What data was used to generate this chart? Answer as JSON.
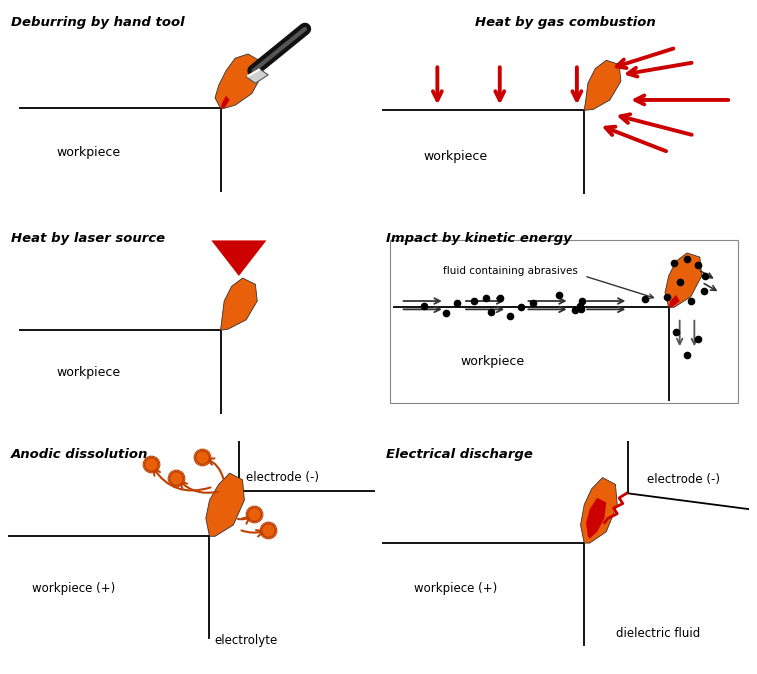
{
  "orange": "#E8600A",
  "dark_orange": "#C04000",
  "red": "#CC0000",
  "panels": {
    "hand_tool": {
      "title": "Deburring by hand tool"
    },
    "gas": {
      "title": "Heat by gas combustion"
    },
    "laser": {
      "title": "Heat by laser source"
    },
    "kinetic": {
      "title": "Impact by kinetic energy"
    },
    "anodic": {
      "title": "Anodic dissolution"
    },
    "edm": {
      "title": "Electrical discharge"
    }
  }
}
